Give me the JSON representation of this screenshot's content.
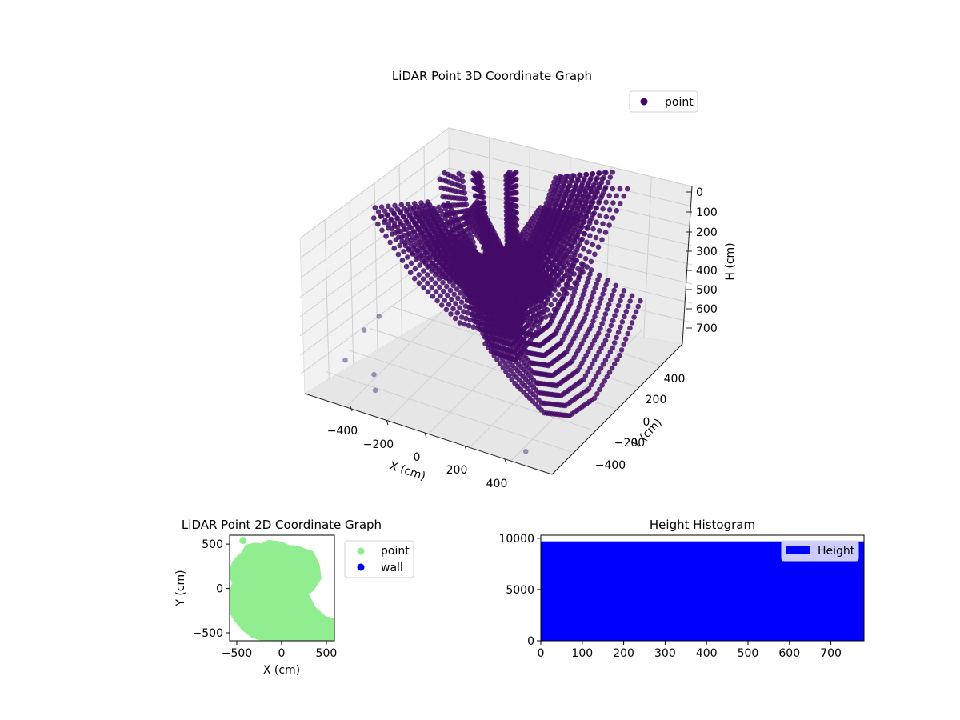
{
  "colors": {
    "point3d": "#440a68",
    "point3d_light": "#5b3f86",
    "point2d": "#90ee90",
    "wall": "#0000ee",
    "hist_bar": "#0000ff",
    "pane": "#f2f2f2",
    "grid": "#cfcfcf"
  },
  "chart_data": [
    {
      "type": "scatter",
      "projection": "3d",
      "title": "LiDAR Point 3D Coordinate Graph",
      "xlabel": "X (cm)",
      "ylabel": "Y (cm)",
      "zlabel": "H (cm)",
      "xticks": [
        "−400",
        "−200",
        "0",
        "200",
        "400"
      ],
      "yticks": [
        "−400",
        "−200",
        "0",
        "200",
        "400"
      ],
      "zticks": [
        "0",
        "100",
        "200",
        "300",
        "400",
        "500",
        "600",
        "700"
      ],
      "xlim": [
        -600,
        600
      ],
      "ylim": [
        -600,
        600
      ],
      "zlim": [
        0,
        760
      ],
      "z_inverted": true,
      "legend": {
        "position": "top-right",
        "entries": [
          "point"
        ]
      },
      "grid": true,
      "series": [
        {
          "name": "point",
          "description_shape": "concentric U-shaped scan arcs forming a bowl",
          "arcs": [
            {
              "x": [
                -420,
                -300,
                -150,
                0,
                150,
                300,
                420
              ],
              "y": [
                300,
                200,
                100,
                0,
                -100,
                -200,
                -300
              ],
              "h": [
                150,
                420,
                620,
                680,
                620,
                420,
                150
              ]
            },
            {
              "x": [
                -380,
                -260,
                -120,
                20,
                160,
                280,
                380
              ],
              "y": [
                -300,
                -180,
                -60,
                60,
                180,
                300,
                420
              ],
              "h": [
                120,
                380,
                570,
                640,
                570,
                380,
                120
              ]
            },
            {
              "x": [
                -300,
                -200,
                -80,
                40,
                160,
                260,
                340
              ],
              "y": [
                350,
                250,
                130,
                10,
                -110,
                -230,
                -330
              ],
              "h": [
                90,
                330,
                520,
                590,
                520,
                330,
                90
              ]
            },
            {
              "x": [
                -200,
                -120,
                -30,
                60,
                150,
                230,
                300
              ],
              "y": [
                -320,
                -200,
                -80,
                40,
                160,
                280,
                380
              ],
              "h": [
                60,
                280,
                470,
                540,
                470,
                280,
                60
              ]
            },
            {
              "x": [
                -100,
                -40,
                30,
                100,
                170,
                230,
                280
              ],
              "y": [
                380,
                270,
                150,
                30,
                -90,
                -210,
                -320
              ],
              "h": [
                40,
                240,
                420,
                490,
                420,
                240,
                40
              ]
            },
            {
              "x": [
                0,
                60,
                120,
                180,
                240,
                300,
                350
              ],
              "y": [
                -250,
                -150,
                -50,
                50,
                150,
                250,
                350
              ],
              "h": [
                30,
                200,
                380,
                450,
                380,
                200,
                30
              ]
            },
            {
              "x": [
                200,
                280,
                360,
                420,
                480,
                540,
                580
              ],
              "y": [
                -450,
                -350,
                -250,
                -150,
                -50,
                50,
                150
              ],
              "h": [
                380,
                560,
                700,
                740,
                700,
                560,
                380
              ]
            },
            {
              "x": [
                -480,
                -360,
                -240,
                -120,
                0,
                120,
                240
              ],
              "y": [
                -100,
                -40,
                20,
                80,
                140,
                200,
                260
              ],
              "h": [
                200,
                360,
                460,
                500,
                460,
                360,
                200
              ]
            }
          ],
          "outliers": {
            "x": [
              -520,
              -470,
              -430,
              -380,
              -300,
              420
            ],
            "y": [
              -380,
              -300,
              -240,
              -380,
              -520,
              -500
            ],
            "h": [
              700,
              600,
              560,
              720,
              700,
              760
            ]
          }
        }
      ]
    },
    {
      "type": "scatter",
      "title": "LiDAR Point 2D Coordinate Graph",
      "xlabel": "X (cm)",
      "ylabel": "Y (cm)",
      "xticks": [
        "−500",
        "0",
        "500"
      ],
      "yticks": [
        "500",
        "0",
        "−500"
      ],
      "xlim": [
        -580,
        590
      ],
      "ylim": [
        -590,
        600
      ],
      "legend": {
        "position": "outside-right",
        "entries": [
          "point",
          "wall"
        ]
      },
      "series": [
        {
          "name": "point",
          "description_shape": "dense filled cloud",
          "outline_x": [
            -420,
            -380,
            -300,
            -220,
            -140,
            -60,
            0,
            80,
            160,
            240,
            330,
            390,
            410,
            330,
            260,
            350,
            470,
            590,
            590,
            420,
            300,
            180,
            60,
            -80,
            -200,
            -320,
            -420,
            -500,
            -570,
            -560,
            -510,
            -560,
            -520,
            -470,
            -420
          ],
          "outline_y": [
            380,
            460,
            480,
            470,
            510,
            500,
            490,
            450,
            450,
            420,
            390,
            260,
            120,
            0,
            -60,
            -230,
            -340,
            -380,
            -590,
            -590,
            -580,
            -580,
            -560,
            -560,
            -560,
            -520,
            -440,
            -340,
            -230,
            -60,
            60,
            160,
            280,
            340,
            380
          ],
          "extra_point": {
            "x": -430,
            "y": 540
          }
        },
        {
          "name": "wall",
          "x": [],
          "y": []
        }
      ]
    },
    {
      "type": "bar",
      "title": "Height Histogram",
      "xticks": [
        "0",
        "100",
        "200",
        "300",
        "400",
        "500",
        "600",
        "700"
      ],
      "yticks": [
        "0",
        "5000",
        "10000"
      ],
      "xlim": [
        0,
        780
      ],
      "ylim": [
        0,
        10300
      ],
      "legend": {
        "position": "top-right",
        "entries": [
          "Height"
        ]
      },
      "series": [
        {
          "name": "Height",
          "x_start": 0,
          "x_end": 780,
          "value": 9700
        }
      ]
    }
  ]
}
